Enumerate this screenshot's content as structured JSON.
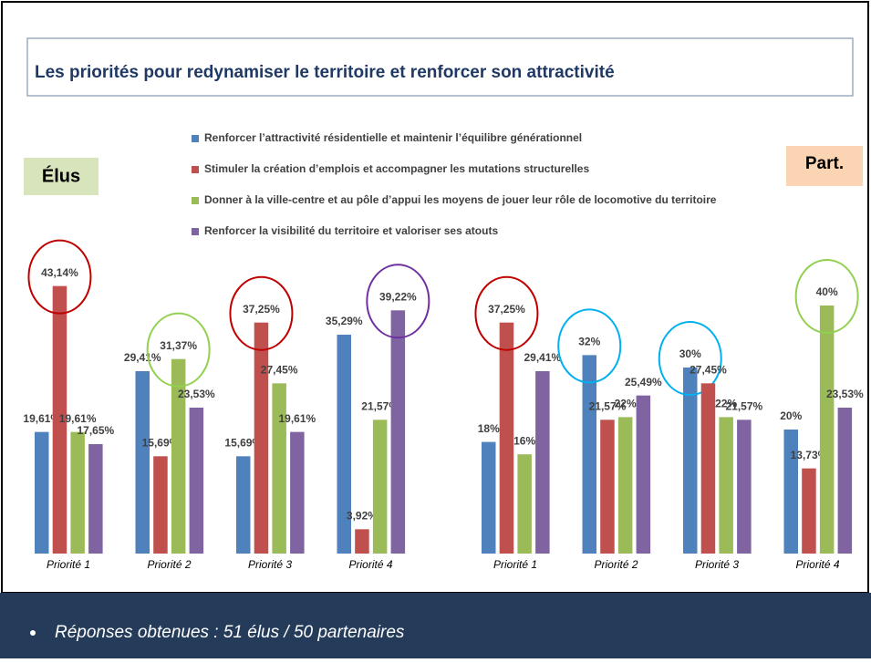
{
  "header": {
    "title": "Les priorités pour redynamiser le territoire et renforcer son attractivité"
  },
  "chart_data": [
    {
      "type": "bar",
      "title": "Élus",
      "categories": [
        "Priorité 1",
        "Priorité 2",
        "Priorité 3",
        "Priorité 4"
      ],
      "series": [
        {
          "name": "Renforcer l’attractivité résidentielle et maintenir l’équilibre générationnel",
          "color": "#4f81bd",
          "values": [
            19.61,
            29.41,
            15.69,
            35.29
          ],
          "value_labels": [
            "19,61%",
            "29,41%",
            "15,69%",
            "35,29%"
          ]
        },
        {
          "name": "Stimuler la création d’emplois et accompagner les mutations structurelles",
          "color": "#c0504d",
          "values": [
            43.14,
            15.69,
            37.25,
            3.92
          ],
          "value_labels": [
            "43,14%",
            "15,69%",
            "37,25%",
            "3,92%"
          ]
        },
        {
          "name": "Donner à la ville-centre et au pôle d’appui les moyens de jouer leur rôle de locomotive du territoire",
          "color": "#9bbb59",
          "values": [
            19.61,
            31.37,
            27.45,
            21.57
          ],
          "value_labels": [
            "19,61%",
            "31,37%",
            "27,45%",
            "21,57%"
          ]
        },
        {
          "name": "Renforcer la visibilité du territoire et valoriser ses atouts",
          "color": "#8064a2",
          "values": [
            17.65,
            23.53,
            19.61,
            39.22
          ],
          "value_labels": [
            "17,65%",
            "23,53%",
            "19,61%",
            "39,22%"
          ]
        }
      ]
    },
    {
      "type": "bar",
      "title": "Part.",
      "categories": [
        "Priorité 1",
        "Priorité 2",
        "Priorité 3",
        "Priorité 4"
      ],
      "series": [
        {
          "color": "#4f81bd",
          "values": [
            18,
            32,
            30,
            20
          ],
          "value_labels": [
            "18%",
            "32%",
            "30%",
            "20%"
          ]
        },
        {
          "color": "#c0504d",
          "values": [
            37.25,
            21.57,
            27.45,
            13.73
          ],
          "value_labels": [
            "37,25%",
            "21,57%",
            "27,45%",
            "13,73%"
          ]
        },
        {
          "color": "#9bbb59",
          "values": [
            16,
            22,
            22,
            40
          ],
          "value_labels": [
            "16%",
            "22%",
            "22%",
            "40%"
          ]
        },
        {
          "color": "#8064a2",
          "values": [
            29.41,
            25.49,
            21.57,
            23.53
          ],
          "value_labels": [
            "29,41%",
            "25,49%",
            "21,57%",
            "23,53%"
          ]
        }
      ]
    }
  ],
  "footer": {
    "text": "Réponses obtenues : 51  élus / 50 partenaires"
  }
}
